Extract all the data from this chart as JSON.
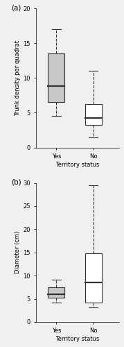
{
  "panel_a": {
    "title": "(a)",
    "ylabel": "Trunk density per quadrat",
    "xlabel": "Territory status",
    "categories": [
      "Yes",
      "No"
    ],
    "boxes": [
      {
        "label": "Yes",
        "median": 8.8,
        "q1": 6.5,
        "q3": 13.5,
        "whisker_low": 4.5,
        "whisker_high": 17.0,
        "fill_color": "#c8c8c8"
      },
      {
        "label": "No",
        "median": 4.2,
        "q1": 3.2,
        "q3": 6.2,
        "whisker_low": 1.5,
        "whisker_high": 11.0,
        "fill_color": "#ffffff"
      }
    ],
    "ylim": [
      0,
      20
    ],
    "yticks": [
      0,
      5,
      10,
      15,
      20
    ]
  },
  "panel_b": {
    "title": "(b)",
    "ylabel": "Diameter (cm)",
    "xlabel": "Territory status",
    "categories": [
      "Yes",
      "No"
    ],
    "boxes": [
      {
        "label": "Yes",
        "median": 6.0,
        "q1": 5.2,
        "q3": 7.5,
        "whisker_low": 4.2,
        "whisker_high": 9.2,
        "fill_color": "#c8c8c8"
      },
      {
        "label": "No",
        "median": 8.5,
        "q1": 4.2,
        "q3": 14.8,
        "whisker_low": 3.2,
        "whisker_high": 29.5,
        "fill_color": "#ffffff"
      }
    ],
    "ylim": [
      0,
      30
    ],
    "yticks": [
      0,
      5,
      10,
      15,
      20,
      25,
      30
    ]
  },
  "box_width": 0.45,
  "positions": [
    1,
    2
  ],
  "background_color": "#f0f0f0",
  "plot_bg": "#f0f0f0",
  "linecolor": "#333333",
  "linewidth": 0.8,
  "median_linewidth": 1.6,
  "whisker_linestyle": "--",
  "cap_linewidth": 0.8,
  "label_fontsize": 6.0,
  "tick_fontsize": 6.0,
  "ylabel_fontsize": 6.0,
  "title_fontsize": 7.5
}
